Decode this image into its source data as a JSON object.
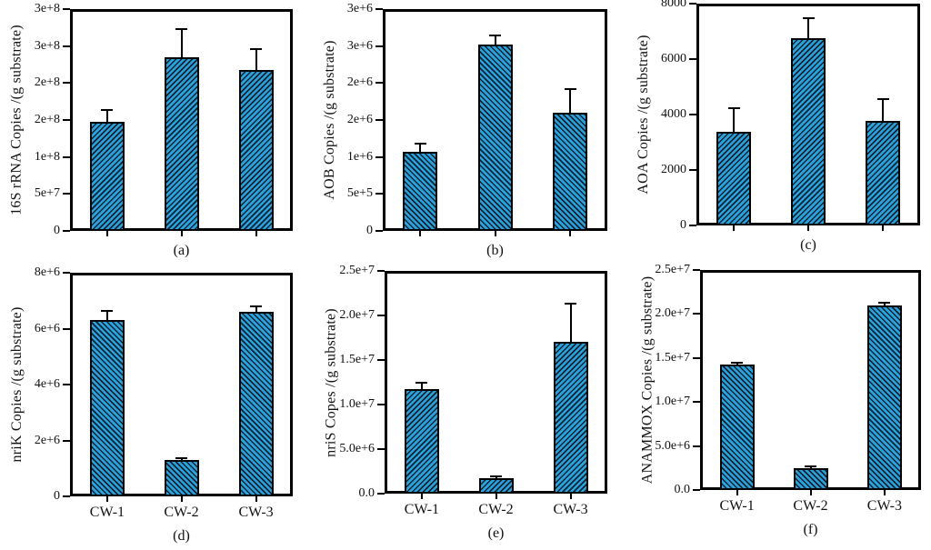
{
  "figure": {
    "background": "#ffffff",
    "bar_fill": "#2aa3dc",
    "hatch_line_color": "#0c2233",
    "axis_color": "#000000",
    "text_color": "#111111"
  },
  "chart_data": [
    {
      "type": "bar",
      "panel_label": "(a)",
      "ylabel": "16S rRNA Copies /(g substrate)",
      "categories": [
        "CW-1",
        "CW-2",
        "CW-3"
      ],
      "values": [
        145000000,
        232000000,
        215000000
      ],
      "errors": [
        16000000,
        38000000,
        28000000
      ],
      "ylim": [
        0,
        300000000
      ],
      "ytick_values": [
        0,
        50000000,
        100000000,
        150000000,
        200000000,
        250000000,
        300000000
      ],
      "ytick_labels": [
        "0",
        "5e+7",
        "1e+8",
        "2e+8",
        "2e+8",
        "3e+8",
        "3e+8"
      ],
      "show_x_tick_labels": false,
      "grid": false,
      "legend": false,
      "hatch": "/"
    },
    {
      "type": "bar",
      "panel_label": "(b)",
      "ylabel": "AOB Copies /(g substrate)",
      "categories": [
        "CW-1",
        "CW-2",
        "CW-3"
      ],
      "values": [
        1050000,
        2500000,
        1580000
      ],
      "errors": [
        110000,
        120000,
        310000
      ],
      "ylim": [
        0,
        3000000
      ],
      "ytick_values": [
        0,
        500000,
        1000000,
        1500000,
        2000000,
        2500000,
        3000000
      ],
      "ytick_labels": [
        "0",
        "5e+5",
        "1e+6",
        "2e+6",
        "2e+6",
        "3e+6",
        "3e+6"
      ],
      "show_x_tick_labels": false,
      "grid": false,
      "legend": false,
      "hatch": "\\"
    },
    {
      "type": "bar",
      "panel_label": "(c)",
      "ylabel": "AOA Copies /(g substrate)",
      "categories": [
        "CW-1",
        "CW-2",
        "CW-3"
      ],
      "values": [
        3320,
        6700,
        3700
      ],
      "errors": [
        830,
        700,
        780
      ],
      "ylim": [
        0,
        8000
      ],
      "ytick_values": [
        0,
        2000,
        4000,
        6000,
        8000
      ],
      "ytick_labels": [
        "0",
        "2000",
        "4000",
        "6000",
        "8000"
      ],
      "show_x_tick_labels": false,
      "grid": false,
      "legend": false,
      "hatch": "/"
    },
    {
      "type": "bar",
      "panel_label": "(d)",
      "ylabel": "nriK Copies /(g substrate)",
      "categories": [
        "CW-1",
        "CW-2",
        "CW-3"
      ],
      "values": [
        6240000,
        1250000,
        6540000
      ],
      "errors": [
        320000,
        60000,
        180000
      ],
      "ylim": [
        0,
        8000000
      ],
      "ytick_values": [
        0,
        2000000,
        4000000,
        6000000,
        8000000
      ],
      "ytick_labels": [
        "0",
        "2e+6",
        "4e+6",
        "6e+6",
        "8e+6"
      ],
      "show_x_tick_labels": true,
      "grid": false,
      "legend": false,
      "hatch": "\\"
    },
    {
      "type": "bar",
      "panel_label": "(e)",
      "ylabel": "nriS Copes /(g substrate)",
      "categories": [
        "CW-1",
        "CW-2",
        "CW-3"
      ],
      "values": [
        11500000,
        1530000,
        16800000
      ],
      "errors": [
        750000,
        200000,
        4300000
      ],
      "ylim": [
        0,
        25000000
      ],
      "ytick_values": [
        0,
        5000000,
        10000000,
        15000000,
        20000000,
        25000000
      ],
      "ytick_labels": [
        "0.0",
        "5.0e+6",
        "1.0e+7",
        "1.5e+7",
        "2.0e+7",
        "2.5e+7"
      ],
      "show_x_tick_labels": true,
      "grid": false,
      "legend": false,
      "hatch": "/"
    },
    {
      "type": "bar",
      "panel_label": "(f)",
      "ylabel": "ANAMMOX Copies /(g substrate)",
      "categories": [
        "CW-1",
        "CW-2",
        "CW-3"
      ],
      "values": [
        14000000,
        2280000,
        20800000
      ],
      "errors": [
        300000,
        200000,
        300000
      ],
      "ylim": [
        0,
        25000000
      ],
      "ytick_values": [
        0,
        5000000,
        10000000,
        15000000,
        20000000,
        25000000
      ],
      "ytick_labels": [
        "0.0",
        "5.0e+6",
        "1.0e+7",
        "1.5e+7",
        "2.0e+7",
        "2.5e+7"
      ],
      "show_x_tick_labels": true,
      "grid": false,
      "legend": false,
      "hatch": "\\"
    }
  ]
}
